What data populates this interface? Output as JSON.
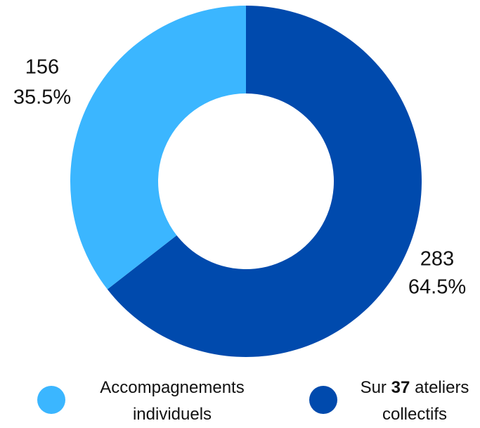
{
  "chart_data": {
    "type": "donut",
    "values": [
      156,
      283
    ],
    "percentages": [
      35.5,
      64.5
    ],
    "percentage_labels": [
      "35.5%",
      "64.5%"
    ],
    "colors": [
      "#3bb6ff",
      "#004aad"
    ],
    "legend": [
      {
        "name_parts": [
          "Accompagnements individuels"
        ]
      },
      {
        "name_parts": [
          "Sur",
          "37",
          "ateliers collectifs"
        ],
        "bold_part": 1
      }
    ]
  }
}
